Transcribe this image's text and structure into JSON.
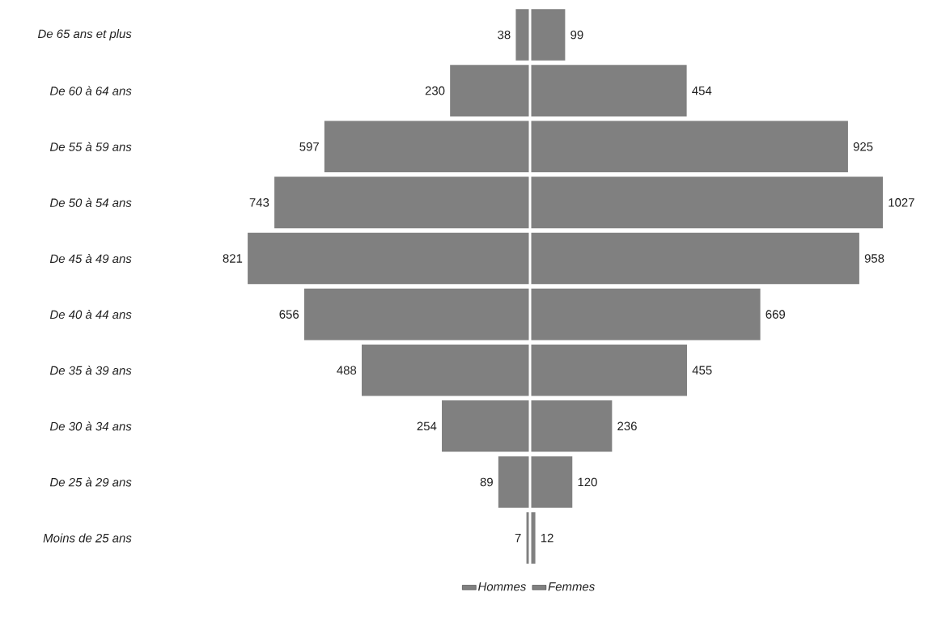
{
  "chart_data": [
    {
      "type": "bar",
      "orientation": "horizontal",
      "categories": [
        "De 65 ans et plus",
        "De 60 à 64 ans",
        "De 55 à 59 ans",
        "De 50 à 54 ans",
        "De 45 à 49 ans",
        "De 40 à 44 ans",
        "De 35 à 39 ans",
        "De 30 à 34 ans",
        "De 25 à 29 ans",
        "Moins de 25 ans"
      ],
      "xlim": [
        821,
        0
      ],
      "tick_labels": "y",
      "legend": "bottom",
      "data_labels": true,
      "series": [
        {
          "name": "Hommes",
          "color": "#808080",
          "values": [
            38,
            230,
            597,
            743,
            821,
            656,
            488,
            254,
            89,
            7
          ]
        }
      ]
    },
    {
      "type": "bar",
      "orientation": "horizontal",
      "categories": [
        null,
        null,
        null,
        null,
        null,
        null,
        null,
        null,
        null,
        null
      ],
      "xlim": [
        0,
        1027
      ],
      "tick_labels": false,
      "legend": "bottom",
      "data_labels": true,
      "series": [
        {
          "name": "Femmes",
          "color": "#808080",
          "values": [
            99,
            454,
            925,
            1027,
            958,
            669,
            455,
            236,
            120,
            12
          ]
        }
      ]
    }
  ]
}
